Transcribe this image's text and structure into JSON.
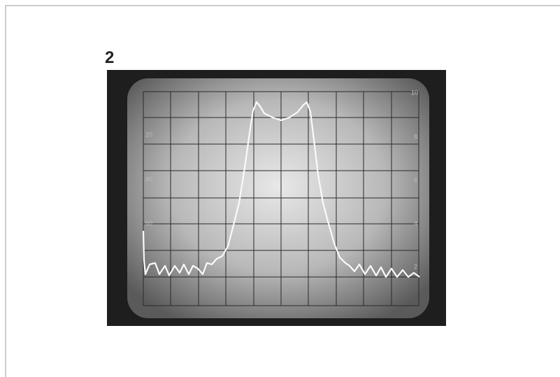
{
  "figure": {
    "label": "2",
    "left_scale": [
      "20",
      "40",
      "60"
    ],
    "right_scale": [
      "10",
      "8",
      "6",
      "4",
      "2"
    ]
  }
}
